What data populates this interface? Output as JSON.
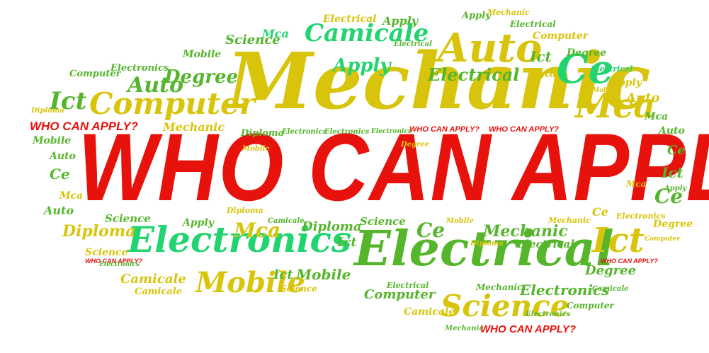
{
  "colors": {
    "red": "#e8120c",
    "yellow": "#d9c40c",
    "green": "#55b52b",
    "mint": "#22d470"
  },
  "words": {
    "who_can_apply_main": "WHO CAN APPLY?",
    "mechanic_main": "Mechanic",
    "electrical_main": "Electrical",
    "electronics_main": "Electronics",
    "science_main": "Science",
    "computer_main": "Computer",
    "auto_main": "Auto",
    "ce_main": "Ce",
    "mca_main": "Mca",
    "ict_main": "Ict",
    "mobile_main": "Mobile",
    "camicale_main": "Camicale",
    "degree_main": "Degree",
    "apply_main": "Apply",
    "diploma_main": "Diploma",
    "who_can_apply_small": "WHO CAN APPLY?",
    "electrical_small": "Electrical",
    "electronics_small": "Electronics",
    "mechanic_small": "Mechanic",
    "computer_small": "Computer",
    "science_small": "Science",
    "camicale_small": "Camicale",
    "degree_small": "Degree",
    "diploma_small": "Diploma",
    "mobile_small": "Mobile",
    "apply_small": "Apply",
    "auto_small": "Auto",
    "ict_small": "Ict",
    "mca_small": "Mca",
    "ce_small": "Ce"
  }
}
